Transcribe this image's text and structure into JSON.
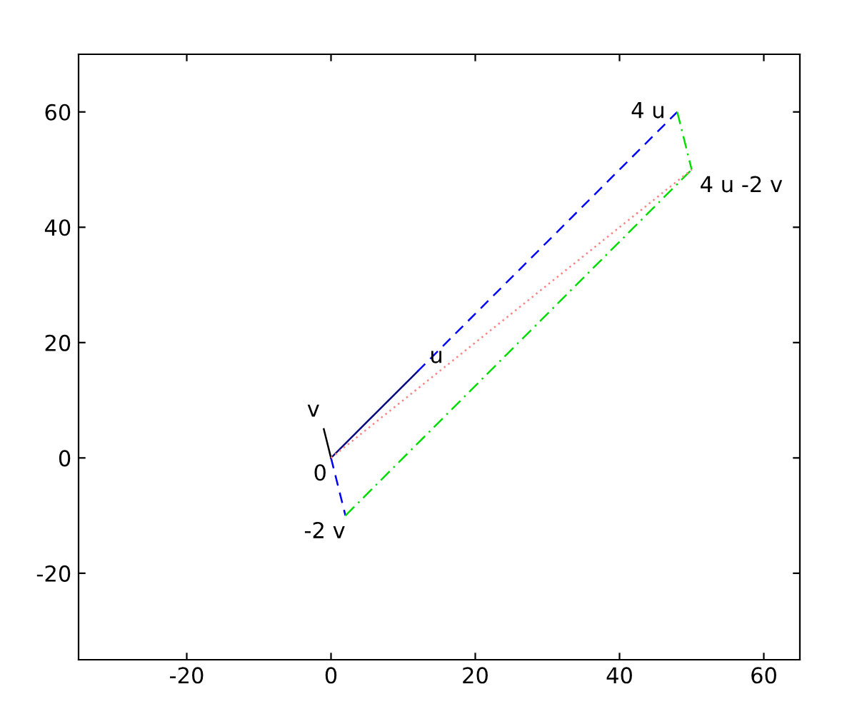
{
  "chart_data": {
    "type": "line",
    "xlim": [
      -35,
      65
    ],
    "ylim": [
      -35,
      70
    ],
    "xticks": [
      -20,
      0,
      20,
      40,
      60
    ],
    "yticks": [
      -20,
      0,
      20,
      40,
      60
    ],
    "grid": false,
    "legend": false,
    "marker": "none",
    "series": [
      {
        "color": "#000080",
        "line_style": "solid",
        "x": [
          0,
          12
        ],
        "values": [
          0,
          15
        ]
      },
      {
        "color": "#000000",
        "line_style": "solid",
        "x": [
          0,
          -1
        ],
        "values": [
          0,
          5
        ]
      },
      {
        "color": "#0000ff",
        "line_style": "dashed",
        "x": [
          12,
          48
        ],
        "values": [
          15,
          60
        ]
      },
      {
        "color": "#0000ff",
        "line_style": "dashed",
        "x": [
          0,
          2
        ],
        "values": [
          0,
          -10
        ]
      },
      {
        "color": "#00dd00",
        "line_style": "dashdot",
        "x": [
          2,
          50
        ],
        "values": [
          -10,
          50
        ]
      },
      {
        "color": "#00dd00",
        "line_style": "dashdot",
        "x": [
          48,
          50
        ],
        "values": [
          60,
          50
        ]
      },
      {
        "color": "#ff8080",
        "line_style": "dotted",
        "x": [
          0,
          50
        ],
        "values": [
          0,
          50
        ]
      }
    ],
    "annotations": [
      {
        "text": "u",
        "x": 12,
        "y": 15
      },
      {
        "text": "v",
        "x": -1,
        "y": 5
      },
      {
        "text": "0",
        "x": 0,
        "y": 0
      },
      {
        "text": "4 u",
        "x": 48,
        "y": 60
      },
      {
        "text": "4 u -2 v",
        "x": 50,
        "y": 50
      },
      {
        "text": "-2 v",
        "x": 2,
        "y": -10
      }
    ]
  }
}
